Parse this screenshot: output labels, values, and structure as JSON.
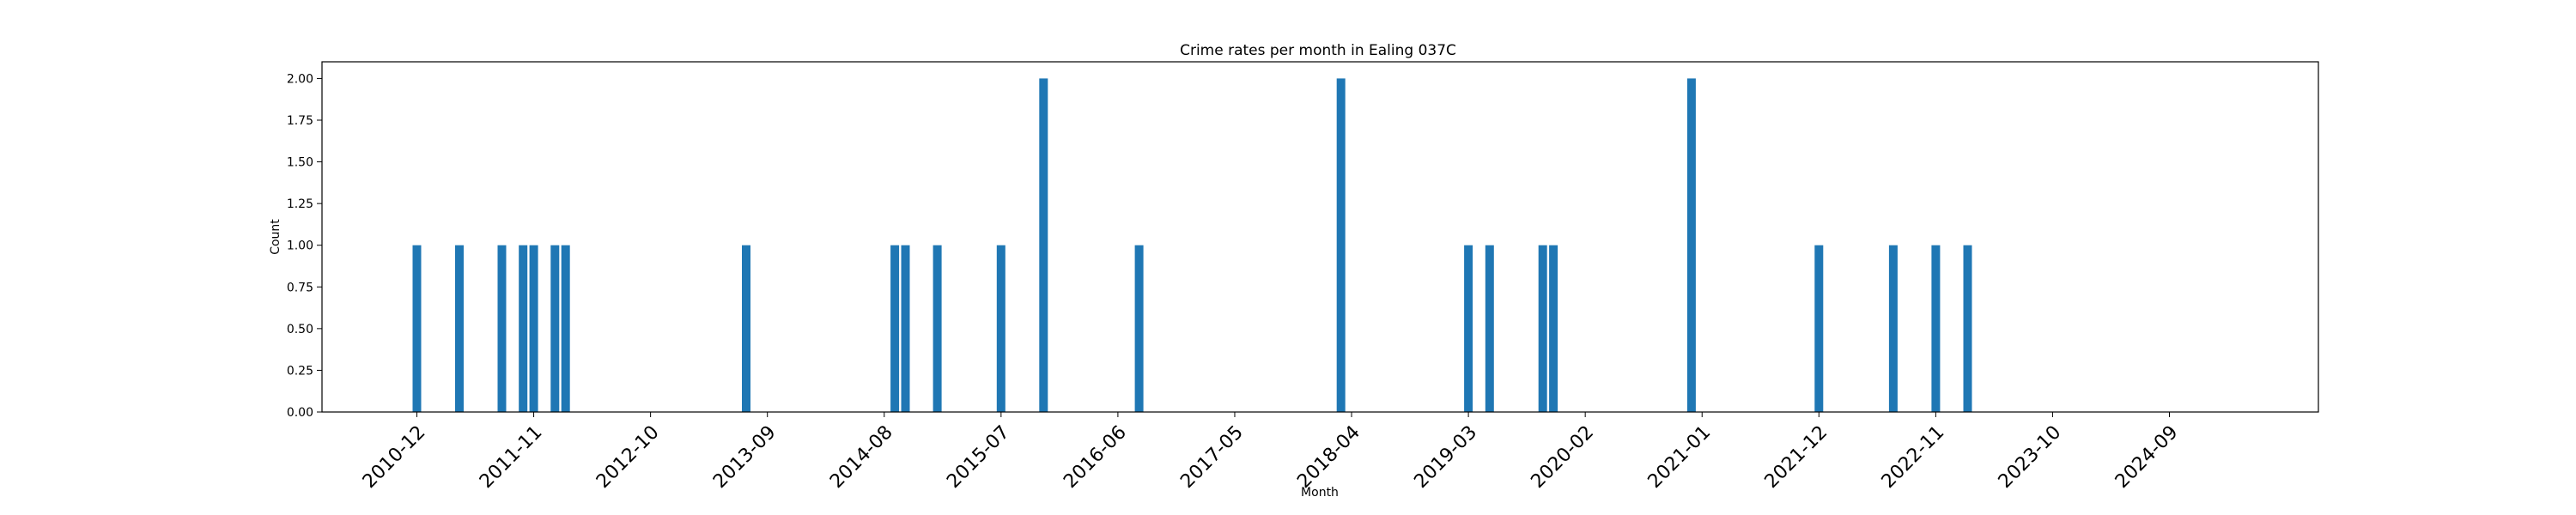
{
  "chart_data": {
    "type": "bar",
    "title": "Crime rates per month in Ealing 037C",
    "xlabel": "Month",
    "ylabel": "Count",
    "ylim": [
      0,
      2.1
    ],
    "y_ticks": [
      "0.00",
      "0.25",
      "0.50",
      "0.75",
      "1.00",
      "1.25",
      "1.50",
      "1.75",
      "2.00"
    ],
    "x_ticks": [
      "2010-12",
      "2011-11",
      "2012-10",
      "2013-09",
      "2014-08",
      "2015-07",
      "2016-06",
      "2017-05",
      "2018-04",
      "2019-03",
      "2020-02",
      "2021-01",
      "2021-12",
      "2022-11",
      "2023-10",
      "2024-09"
    ],
    "grid": false,
    "bar_color": "#1f77b4",
    "bars": [
      {
        "month": "2010-12",
        "value": 1
      },
      {
        "month": "2011-04",
        "value": 1
      },
      {
        "month": "2011-08",
        "value": 1
      },
      {
        "month": "2011-10",
        "value": 1
      },
      {
        "month": "2011-11",
        "value": 1
      },
      {
        "month": "2012-01",
        "value": 1
      },
      {
        "month": "2012-02",
        "value": 1
      },
      {
        "month": "2013-07",
        "value": 1
      },
      {
        "month": "2014-09",
        "value": 1
      },
      {
        "month": "2014-10",
        "value": 1
      },
      {
        "month": "2015-01",
        "value": 1
      },
      {
        "month": "2015-07",
        "value": 1
      },
      {
        "month": "2015-11",
        "value": 2
      },
      {
        "month": "2016-08",
        "value": 1
      },
      {
        "month": "2018-03",
        "value": 2
      },
      {
        "month": "2019-03",
        "value": 1
      },
      {
        "month": "2019-05",
        "value": 1
      },
      {
        "month": "2019-10",
        "value": 1
      },
      {
        "month": "2019-11",
        "value": 1
      },
      {
        "month": "2020-12",
        "value": 2
      },
      {
        "month": "2021-12",
        "value": 1
      },
      {
        "month": "2022-07",
        "value": 1
      },
      {
        "month": "2022-11",
        "value": 1
      },
      {
        "month": "2023-02",
        "value": 1
      }
    ]
  }
}
